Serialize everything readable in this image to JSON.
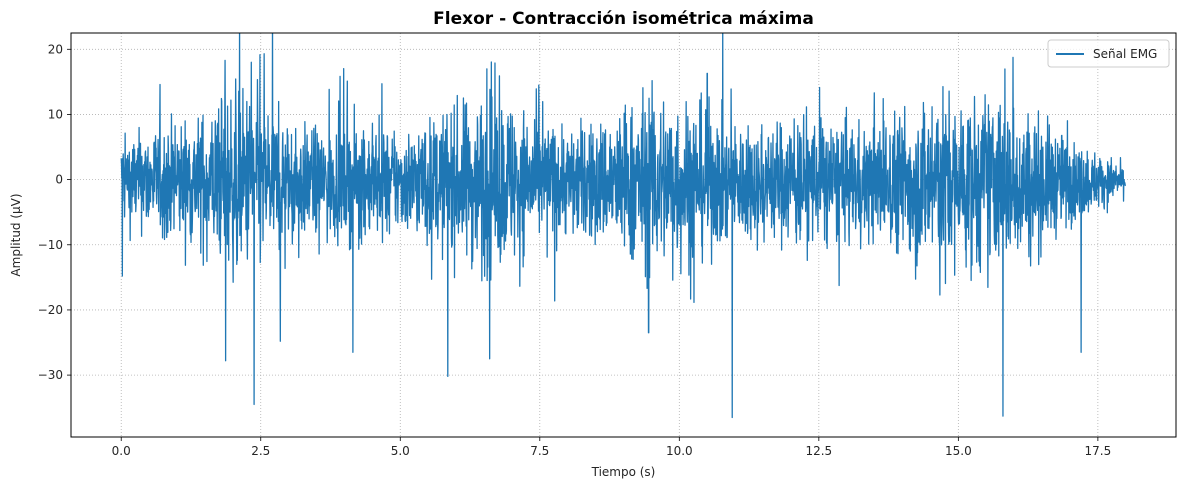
{
  "chart_data": {
    "type": "line",
    "title": "Flexor - Contracción isométrica máxima",
    "xlabel": "Tiempo (s)",
    "ylabel": "Amplitud (µV)",
    "xlim": [
      -0.9,
      18.9
    ],
    "ylim": [
      -39.5,
      22.5
    ],
    "grid": true,
    "grid_style": "dotted",
    "legend_position": "top-right",
    "x_ticks": [
      0.0,
      2.5,
      5.0,
      7.5,
      10.0,
      12.5,
      15.0,
      17.5
    ],
    "x_tick_labels": [
      "0.0",
      "2.5",
      "5.0",
      "7.5",
      "10.0",
      "12.5",
      "15.0",
      "17.5"
    ],
    "y_ticks": [
      -30,
      -20,
      -10,
      0,
      10,
      20
    ],
    "y_tick_labels": [
      "−30",
      "−20",
      "−10",
      "0",
      "10",
      "20"
    ],
    "series": [
      {
        "name": "Señal EMG",
        "color": "#1f77b4",
        "sampling": "dense noisy EMG signal, approx. 0–18 s",
        "envelope": {
          "t": [
            0.0,
            0.5,
            1.0,
            1.5,
            2.0,
            2.5,
            3.0,
            3.5,
            4.0,
            4.5,
            5.0,
            5.5,
            6.0,
            6.5,
            7.0,
            7.5,
            8.0,
            8.5,
            9.0,
            9.5,
            10.0,
            10.5,
            11.0,
            11.5,
            12.0,
            12.5,
            13.0,
            13.5,
            14.0,
            14.5,
            15.0,
            15.5,
            16.0,
            16.5,
            17.0,
            17.5,
            18.0
          ],
          "upper": [
            7,
            7.5,
            9,
            10,
            14,
            13,
            8,
            7,
            9,
            8,
            7,
            9,
            11,
            13,
            12,
            9,
            8,
            8.5,
            11,
            14,
            13,
            11,
            8,
            8,
            9.5,
            10,
            8,
            8,
            11,
            13,
            12,
            13,
            12,
            9,
            6,
            4,
            2
          ],
          "lower": [
            -8,
            -9,
            -10,
            -12,
            -16,
            -15,
            -11,
            -10,
            -10,
            -10,
            -9,
            -11,
            -13,
            -16,
            -14,
            -11,
            -10,
            -11,
            -13,
            -16,
            -15,
            -13,
            -11,
            -11,
            -11,
            -11,
            -11,
            -11,
            -13,
            -16,
            -15,
            -16,
            -14,
            -12,
            -8,
            -5,
            -3
          ]
        },
        "peaks": [
          {
            "t": 1.86,
            "v": 18.3
          },
          {
            "t": 2.33,
            "v": 18.0
          },
          {
            "t": 6.55,
            "v": 17.0
          },
          {
            "t": 10.5,
            "v": 16.3
          },
          {
            "t": 15.8,
            "v": 19.5
          },
          {
            "t": 0.02,
            "v": -14.8
          },
          {
            "t": 1.87,
            "v": -27.8
          },
          {
            "t": 2.38,
            "v": -34.5
          },
          {
            "t": 2.85,
            "v": -24.8
          },
          {
            "t": 4.15,
            "v": -26.5
          },
          {
            "t": 5.85,
            "v": -30.2
          },
          {
            "t": 6.6,
            "v": -27.5
          },
          {
            "t": 9.45,
            "v": -23.5
          },
          {
            "t": 10.95,
            "v": -36.5
          },
          {
            "t": 15.8,
            "v": -36.3
          },
          {
            "t": 17.2,
            "v": -26.5
          }
        ]
      }
    ]
  }
}
